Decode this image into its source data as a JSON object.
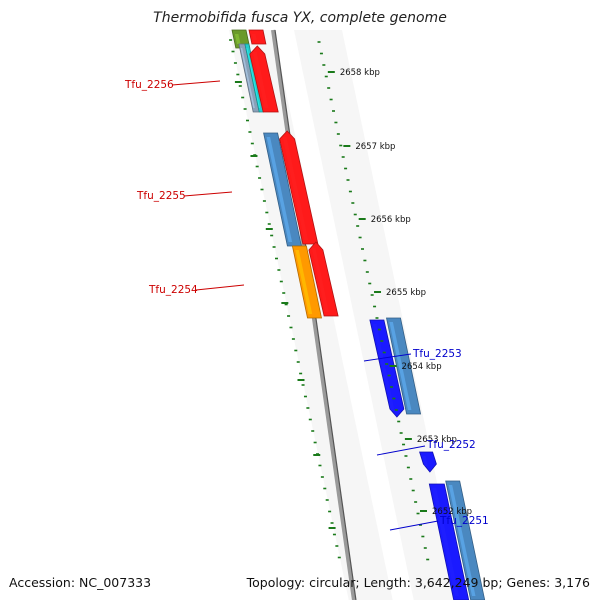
{
  "title": "Thermobifida fusca YX, complete genome",
  "footer": {
    "accession": "Accession: NC_007333",
    "summary": "Topology: circular; Length: 3,642,249 bp; Genes: 3,176"
  },
  "colors": {
    "forward_label": "#cc0000",
    "reverse_label": "#0000cc",
    "tick": "#1a7a1a",
    "backbone": "#808080",
    "red": "#ff1a1a",
    "blue": "#1a1aff",
    "steel": "#4a88c0",
    "orange": "#ff9900",
    "olive": "#6a9a2a",
    "cyan": "#22cccc"
  },
  "scale": {
    "labels": [
      "2658 kbp",
      "2657 kbp",
      "2656 kbp",
      "2655 kbp",
      "2654 kbp",
      "2653 kbp",
      "2652 kbp"
    ]
  },
  "genes": [
    {
      "label": "Tfu_2256",
      "strand": "forward"
    },
    {
      "label": "Tfu_2255",
      "strand": "forward"
    },
    {
      "label": "Tfu_2254",
      "strand": "forward"
    },
    {
      "label": "Tfu_2253",
      "strand": "reverse"
    },
    {
      "label": "Tfu_2252",
      "strand": "reverse"
    },
    {
      "label": "Tfu_2251",
      "strand": "reverse"
    }
  ]
}
